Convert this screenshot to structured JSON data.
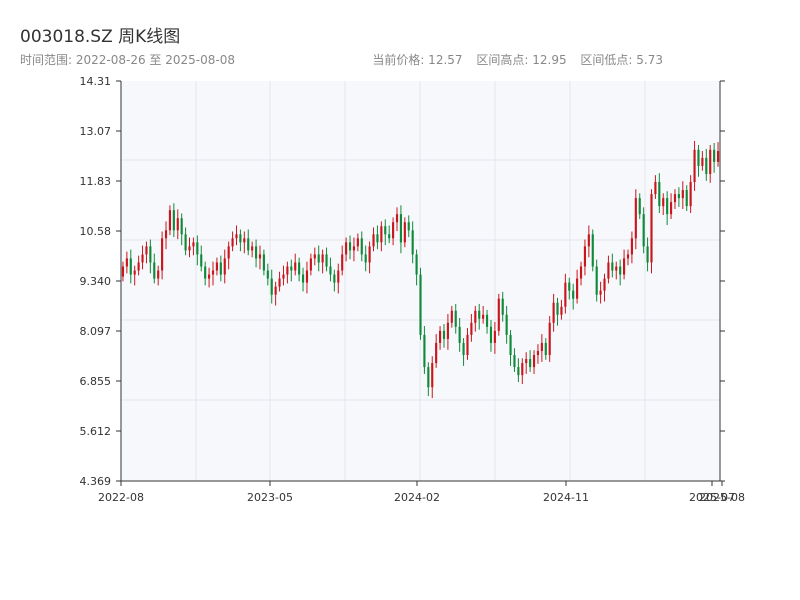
{
  "header": {
    "title": "003018.SZ 周K线图",
    "range_label": "时间范围: 2022-08-26 至 2025-08-08",
    "current_price": "当前价格: 12.57",
    "range_high": "区间高点: 12.95",
    "range_low": "区间低点: 5.73"
  },
  "chart_data": {
    "type": "candlestick",
    "title": "003018.SZ 周K线图",
    "xlabel": "",
    "ylabel": "",
    "ylim": [
      4.369,
      14.31
    ],
    "y_ticks": [
      "4.369",
      "5.612",
      "6.855",
      "8.097",
      "9.340",
      "10.58",
      "11.83",
      "13.07",
      "14.31"
    ],
    "x_ticks": [
      "2022-08",
      "2023-05",
      "2024-02",
      "2024-11",
      "2025-07",
      "2025-08"
    ],
    "grid": true,
    "up_color": "#c9161d",
    "down_color": "#0f8a3a",
    "closes": [
      9.7,
      9.9,
      9.5,
      9.6,
      9.8,
      10.0,
      10.2,
      9.8,
      9.4,
      9.6,
      10.4,
      10.6,
      11.1,
      10.6,
      10.9,
      10.5,
      10.1,
      10.2,
      10.3,
      10.0,
      9.7,
      9.4,
      9.5,
      9.6,
      9.8,
      9.5,
      9.9,
      10.2,
      10.4,
      10.5,
      10.3,
      10.4,
      10.1,
      10.2,
      9.9,
      10.0,
      9.6,
      9.4,
      9.0,
      9.2,
      9.4,
      9.5,
      9.7,
      9.6,
      9.8,
      9.5,
      9.3,
      9.6,
      9.9,
      10.0,
      9.8,
      10.0,
      9.7,
      9.5,
      9.3,
      9.6,
      10.0,
      10.3,
      10.1,
      10.2,
      10.4,
      10.0,
      9.8,
      10.2,
      10.5,
      10.3,
      10.7,
      10.5,
      10.4,
      10.8,
      11.0,
      10.3,
      10.8,
      10.6,
      10.0,
      9.5,
      8.0,
      7.2,
      6.7,
      7.3,
      7.8,
      8.1,
      7.9,
      8.3,
      8.6,
      8.2,
      7.8,
      7.5,
      8.0,
      8.3,
      8.6,
      8.4,
      8.5,
      8.2,
      7.8,
      8.1,
      8.9,
      8.5,
      8.0,
      7.5,
      7.2,
      7.0,
      7.3,
      7.4,
      7.2,
      7.5,
      7.6,
      7.8,
      7.5,
      8.3,
      8.8,
      8.5,
      8.7,
      9.3,
      9.1,
      8.9,
      9.4,
      9.7,
      10.2,
      10.5,
      9.7,
      9.0,
      9.1,
      9.4,
      9.8,
      9.6,
      9.7,
      9.5,
      9.9,
      10.0,
      10.4,
      11.4,
      11.0,
      10.2,
      9.8,
      11.5,
      11.8,
      11.2,
      11.4,
      11.0,
      11.3,
      11.5,
      11.4,
      11.6,
      11.2,
      11.8,
      12.6,
      12.2,
      12.4,
      12.0,
      12.6,
      12.3,
      12.57
    ],
    "price_high": 12.95,
    "price_low": 5.73,
    "current_price": 12.57
  }
}
